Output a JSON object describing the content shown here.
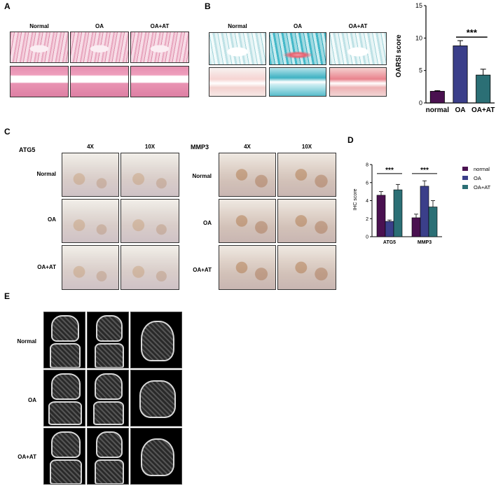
{
  "panels": {
    "A": {
      "label": "A",
      "columns": [
        "Normal",
        "OA",
        "OA+AT"
      ]
    },
    "B": {
      "label": "B",
      "columns": [
        "Normal",
        "OA",
        "OA+AT"
      ]
    },
    "C": {
      "label": "C",
      "marker1": "ATG5",
      "marker2": "MMP3",
      "magnifications": [
        "4X",
        "10X"
      ],
      "rows": [
        "Normal",
        "OA",
        "OA+AT"
      ]
    },
    "D": {
      "label": "D"
    },
    "E": {
      "label": "E",
      "rows": [
        "Normal",
        "OA",
        "OA+AT"
      ]
    }
  },
  "chart_data": [
    {
      "type": "bar",
      "categories": [
        "normal",
        "OA",
        "OA+AT"
      ],
      "values": [
        1.8,
        8.8,
        4.3
      ],
      "errors": [
        0.1,
        0.8,
        0.9
      ],
      "colors": [
        "#4a1150",
        "#3b3f8a",
        "#2b6f75"
      ],
      "ylabel": "OARSI score",
      "ylim": [
        0,
        15
      ],
      "yticks": [
        0,
        5,
        10,
        15
      ],
      "significance": {
        "from": "OA",
        "to": "OA+AT",
        "label": "***"
      }
    },
    {
      "type": "bar",
      "categories": [
        "ATG5",
        "MMP3"
      ],
      "series": [
        {
          "name": "normal",
          "values": [
            4.6,
            2.1
          ],
          "errors": [
            0.4,
            0.4
          ],
          "color": "#4a1150"
        },
        {
          "name": "OA",
          "values": [
            1.7,
            5.6
          ],
          "errors": [
            0.15,
            0.6
          ],
          "color": "#3b3f8a"
        },
        {
          "name": "OA+AT",
          "values": [
            5.2,
            3.3
          ],
          "errors": [
            0.6,
            0.7
          ],
          "color": "#2b6f75"
        }
      ],
      "ylabel": "IHC score",
      "ylim": [
        0,
        8
      ],
      "yticks": [
        0,
        2,
        4,
        6,
        8
      ],
      "legend": "right",
      "significance": [
        {
          "category": "ATG5",
          "label": "***"
        },
        {
          "category": "MMP3",
          "label": "***"
        }
      ]
    }
  ]
}
